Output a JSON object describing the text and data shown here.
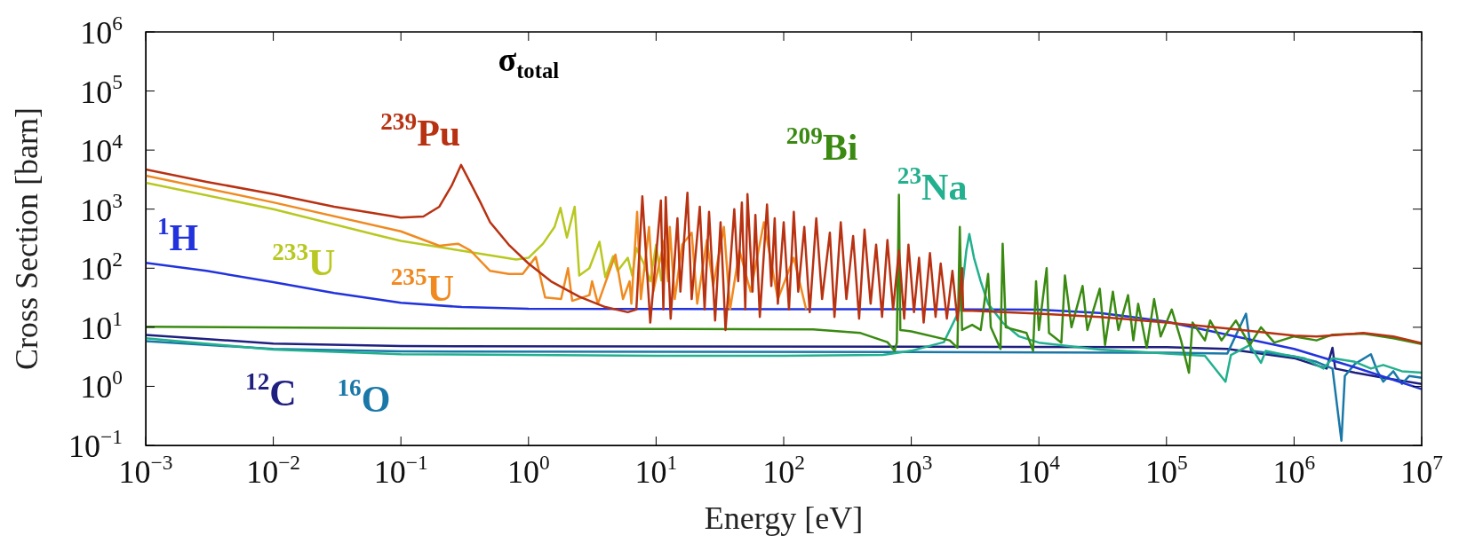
{
  "chart_data": {
    "type": "line",
    "title": "σ$_{total}$",
    "xlabel": "Energy [eV]",
    "ylabel": "Cross Section [barn]",
    "log": "xy",
    "xlim": [
      0.001,
      10000000
    ],
    "ylim": [
      0.1,
      1000000
    ],
    "xticks": [
      {
        "value": 0.001,
        "label": "10$^{−3}$"
      },
      {
        "value": 0.01,
        "label": "10$^{−2}$"
      },
      {
        "value": 0.1,
        "label": "10$^{−1}$"
      },
      {
        "value": 1,
        "label": "10$^{0}$"
      },
      {
        "value": 10,
        "label": "10$^{1}$"
      },
      {
        "value": 100,
        "label": "10$^{2}$"
      },
      {
        "value": 1000,
        "label": "10$^{3}$"
      },
      {
        "value": 10000,
        "label": "10$^{4}$"
      },
      {
        "value": 100000,
        "label": "10$^{5}$"
      },
      {
        "value": 1000000,
        "label": "10$^{6}$"
      },
      {
        "value": 10000000,
        "label": "10$^{7}$"
      }
    ],
    "yticks": [
      {
        "value": 0.1,
        "label": "10$^{−1}$"
      },
      {
        "value": 1,
        "label": "10$^{0}$"
      },
      {
        "value": 10,
        "label": "10$^{1}$"
      },
      {
        "value": 100,
        "label": "10$^{2}$"
      },
      {
        "value": 1000,
        "label": "10$^{3}$"
      },
      {
        "value": 10000,
        "label": "10$^{4}$"
      },
      {
        "value": 100000,
        "label": "10$^{5}$"
      },
      {
        "value": 1000000,
        "label": "10$^{6}$"
      }
    ],
    "series": [
      {
        "name": "$^{239}$Pu",
        "color": "#b83212",
        "x": [
          0.001,
          0.003,
          0.01,
          0.03,
          0.1,
          0.15,
          0.2,
          0.25,
          0.296,
          0.35,
          0.42,
          0.5,
          0.7,
          1,
          1.5,
          2.5,
          4,
          6,
          7,
          7.8,
          9,
          10.9,
          11.4,
          11.9,
          13,
          14.7,
          15.5,
          17.6,
          19,
          22,
          24,
          26,
          29,
          32,
          35,
          41,
          44,
          47,
          50,
          52,
          57,
          60,
          65,
          74,
          80,
          85,
          90,
          100,
          110,
          120,
          130,
          145,
          160,
          180,
          200,
          230,
          250,
          280,
          310,
          350,
          390,
          430,
          480,
          530,
          590,
          650,
          720,
          800,
          880,
          950,
          1050,
          1150,
          1250,
          1400,
          1550,
          1700,
          1900,
          2100,
          2300,
          2500,
          2550,
          3000,
          10000,
          30000,
          100000,
          300000,
          1000000,
          1500000,
          3500000,
          6000000,
          10000000
        ],
        "values": [
          4700,
          2900,
          1800,
          1100,
          720,
          750,
          1100,
          2500,
          5600,
          2800,
          1300,
          600,
          250,
          120,
          60,
          33,
          22,
          18,
          20,
          1650,
          12,
          1400,
          20,
          1600,
          14,
          700,
          40,
          1900,
          30,
          1100,
          20,
          900,
          13,
          600,
          9,
          1000,
          60,
          1300,
          20,
          1800,
          40,
          800,
          15,
          1200,
          50,
          700,
          25,
          600,
          20,
          900,
          40,
          500,
          18,
          700,
          30,
          400,
          15,
          600,
          30,
          350,
          14,
          450,
          25,
          250,
          15,
          300,
          20,
          200,
          14,
          250,
          18,
          150,
          12,
          180,
          15,
          120,
          14,
          90,
          13,
          100,
          19,
          19,
          17,
          15,
          12,
          9.5,
          7.2,
          7,
          8,
          7,
          5.4
        ]
      },
      {
        "name": "$^{209}$Bi",
        "color": "#3a8a12",
        "x": [
          0.001,
          0.1,
          10,
          170,
          400,
          650,
          740,
          770,
          800,
          820,
          1000,
          2000,
          2300,
          2400,
          2500,
          3000,
          3500,
          4000,
          4200,
          5000,
          5200,
          5500,
          8000,
          9000,
          9500,
          10000,
          11500,
          12000,
          15000,
          16000,
          18000,
          22000,
          24000,
          30000,
          33000,
          38000,
          42000,
          50000,
          55000,
          60000,
          70000,
          80000,
          90000,
          110000,
          130000,
          150000,
          160000,
          200000,
          220000,
          270000,
          350000,
          450000,
          550000,
          700000,
          1000000,
          1500000,
          2000000,
          3500000,
          6000000,
          10000000
        ],
        "values": [
          10.2,
          9.6,
          9.4,
          9.2,
          8,
          5.6,
          4,
          5.5,
          1750,
          9,
          8.5,
          6,
          4.5,
          500,
          9,
          11,
          9,
          80,
          10,
          4.3,
          260,
          10,
          8,
          4,
          60,
          9,
          100,
          8,
          5.5,
          75,
          10,
          50,
          9,
          45,
          5,
          40,
          9,
          35,
          6,
          25,
          4.5,
          30,
          7,
          20,
          6,
          1.7,
          12,
          6,
          13,
          6,
          13,
          5,
          10,
          5.5,
          7,
          6,
          7.5,
          7.8,
          6.5,
          5.2
        ]
      },
      {
        "name": "$^{235}$U",
        "color": "#f08a20",
        "x": [
          0.001,
          0.01,
          0.1,
          0.2,
          0.28,
          0.35,
          0.5,
          0.7,
          0.9,
          1.14,
          1.35,
          1.8,
          2.04,
          2.2,
          3,
          3.15,
          3.5,
          4.8,
          5.5,
          6.2,
          6.4,
          7.1,
          7.6,
          8.8,
          9.5,
          11.6,
          12.4,
          12.8,
          14,
          16,
          19,
          21,
          25,
          28,
          34,
          38,
          45,
          55,
          70,
          90,
          120,
          150
        ],
        "values": [
          3700,
          1300,
          420,
          240,
          260,
          200,
          90,
          80,
          80,
          155,
          32,
          30,
          100,
          28,
          35,
          60,
          25,
          170,
          30,
          60,
          25,
          900,
          30,
          500,
          40,
          300,
          60,
          500,
          30,
          250,
          400,
          25,
          300,
          50,
          500,
          20,
          200,
          40,
          600,
          30,
          150,
          20
        ]
      },
      {
        "name": "$^{233}$U",
        "color": "#b8c820",
        "x": [
          0.001,
          0.01,
          0.063,
          0.1,
          0.29,
          0.8,
          1,
          1.3,
          1.6,
          1.78,
          2,
          2.3,
          2.5,
          3,
          3.6,
          4,
          4.6,
          5,
          6,
          6.5,
          7,
          8,
          9,
          10,
          11
        ],
        "values": [
          2800,
          1000,
          370,
          290,
          200,
          140,
          150,
          260,
          500,
          1050,
          330,
          1100,
          75,
          100,
          280,
          70,
          160,
          90,
          150,
          75,
          220,
          120,
          60,
          250,
          60
        ]
      },
      {
        "name": "$^{23}$Na",
        "color": "#22b08e",
        "x": [
          0.001,
          0.01,
          0.1,
          10,
          100,
          600,
          1000,
          1800,
          2400,
          2700,
          2850,
          3100,
          3500,
          4000,
          5200,
          7000,
          10000,
          30000,
          100000,
          200000,
          290000,
          320000,
          450000,
          550000,
          600000,
          800000,
          1200000,
          1700000,
          2000000,
          3000000,
          4000000,
          5000000,
          7000000,
          10000000
        ],
        "values": [
          6.5,
          4.2,
          3.5,
          3.3,
          3.3,
          3.4,
          4,
          5.6,
          20,
          200,
          380,
          150,
          60,
          25,
          12,
          7,
          5.5,
          4.2,
          3.6,
          3.3,
          1.2,
          3.4,
          5,
          2.5,
          4,
          3.5,
          3,
          2,
          3,
          2.6,
          2,
          2.3,
          1.8,
          1.7
        ]
      },
      {
        "name": "$^{1}$H",
        "color": "#2233dd",
        "x": [
          0.001,
          0.003,
          0.01,
          0.03,
          0.1,
          0.3,
          1,
          10,
          100,
          1000,
          10000,
          30000,
          100000,
          300000,
          1000000,
          3000000,
          10000000
        ],
        "values": [
          123,
          90,
          58,
          38,
          26,
          22,
          20.5,
          20.4,
          20.3,
          20.2,
          19.8,
          17.5,
          12.5,
          7.5,
          4.3,
          2.1,
          0.9
        ]
      },
      {
        "name": "$^{16}$O",
        "color": "#1a78a8",
        "x": [
          0.001,
          0.01,
          0.1,
          1000,
          100000,
          300000,
          420000,
          460000,
          1000000,
          1500000,
          2000000,
          2350000,
          2500000,
          3000000,
          4000000,
          4500000,
          5000000,
          6000000,
          7000000,
          8000000,
          10000000
        ],
        "values": [
          5.8,
          4.3,
          3.9,
          3.8,
          3.7,
          3.6,
          17,
          4,
          3.2,
          2.6,
          2,
          0.12,
          1.5,
          2.4,
          3.5,
          1.8,
          1.2,
          1.8,
          1.1,
          1.5,
          1.4
        ]
      },
      {
        "name": "$^{12}$C",
        "color": "#1f1f80",
        "x": [
          0.001,
          0.01,
          0.1,
          1000,
          100000,
          300000,
          1000000,
          1800000,
          2000000,
          2100000,
          3000000,
          5000000,
          10000000
        ],
        "values": [
          7.4,
          5.3,
          4.8,
          4.7,
          4.6,
          4.3,
          3,
          2,
          4.5,
          2,
          1.7,
          1.4,
          1.1
        ]
      }
    ]
  }
}
